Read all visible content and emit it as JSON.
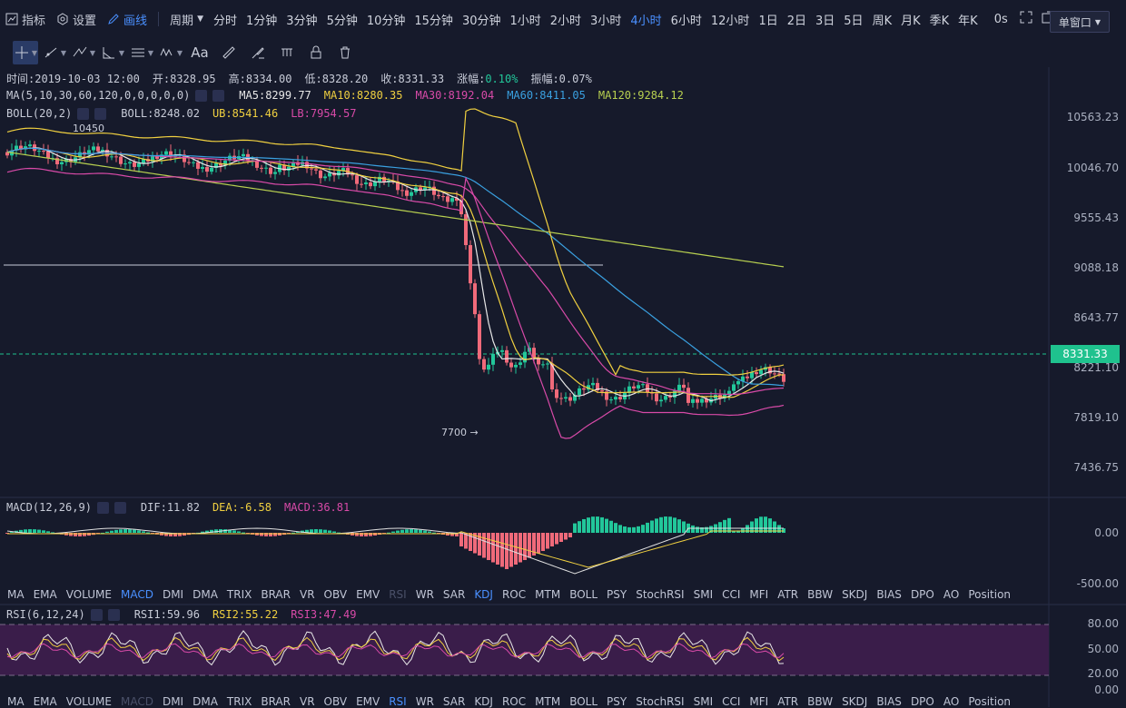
{
  "topbar": {
    "indicator_label": "指标",
    "settings_label": "设置",
    "draw_label": "画线",
    "period_label": "周期",
    "periods": [
      "分时",
      "1分钟",
      "3分钟",
      "5分钟",
      "10分钟",
      "15分钟",
      "30分钟",
      "1小时",
      "2小时",
      "3小时",
      "4小时",
      "6小时",
      "12小时",
      "1日",
      "2日",
      "3日",
      "5日",
      "周K",
      "月K",
      "季K",
      "年K"
    ],
    "active_period": "4小时",
    "countdown": "0s",
    "window_mode": "单窗口"
  },
  "info_line": {
    "time_label": "时间:",
    "time": "2019-10-03 12:00",
    "open_label": "开:",
    "open": "8328.95",
    "high_label": "高:",
    "high": "8334.00",
    "low_label": "低:",
    "low": "8328.20",
    "close_label": "收:",
    "close": "8331.33",
    "change_label": "涨幅:",
    "change": "0.10%",
    "amp_label": "振幅:",
    "amp": "0.07%"
  },
  "ma_legend": {
    "name": "MA(5,10,30,60,120,0,0,0,0,0)",
    "ma5": "MA5:8299.77",
    "ma10": "MA10:8280.35",
    "ma30": "MA30:8192.04",
    "ma60": "MA60:8411.05",
    "ma120": "MA120:9284.12"
  },
  "boll_legend": {
    "name": "BOLL(20,2)",
    "boll": "BOLL:8248.02",
    "ub": "UB:8541.46",
    "lb": "LB:7954.57"
  },
  "price_axis": [
    "10563.23",
    "10046.70",
    "9555.43",
    "9088.18",
    "8643.77",
    "8221.10",
    "7819.10",
    "7436.75"
  ],
  "current_price": "8331.33",
  "annotations": {
    "high_mark": "10450",
    "low_mark": "7700 →"
  },
  "macd": {
    "name": "MACD(12,26,9)",
    "dif": "DIF:11.82",
    "dea": "DEA:-6.58",
    "macd": "MACD:36.81",
    "axis": [
      "0.00",
      "-500.00"
    ]
  },
  "indicator_tabs": [
    "MA",
    "EMA",
    "VOLUME",
    "MACD",
    "DMI",
    "DMA",
    "TRIX",
    "BRAR",
    "VR",
    "OBV",
    "EMV",
    "RSI",
    "WR",
    "SAR",
    "KDJ",
    "ROC",
    "MTM",
    "BOLL",
    "PSY",
    "StochRSI",
    "SMI",
    "CCI",
    "MFI",
    "ATR",
    "BBW",
    "SKDJ",
    "BIAS",
    "DPO",
    "AO",
    "Position"
  ],
  "rsi": {
    "name": "RSI(6,12,24)",
    "rsi1": "RSI1:59.96",
    "rsi2": "RSI2:55.22",
    "rsi3": "RSI3:47.49",
    "axis": [
      "80.00",
      "50.00",
      "20.00",
      "0.00"
    ]
  },
  "colors": {
    "up": "#22c79a",
    "down": "#f06a7a",
    "ma5": "#e8e8e8",
    "ma10": "#f0d040",
    "ma30": "#d84aa8",
    "ma60": "#3aa0e0",
    "ma120": "#b8d050",
    "accent": "#4a90ff",
    "price_tag": "#1fc28e"
  }
}
